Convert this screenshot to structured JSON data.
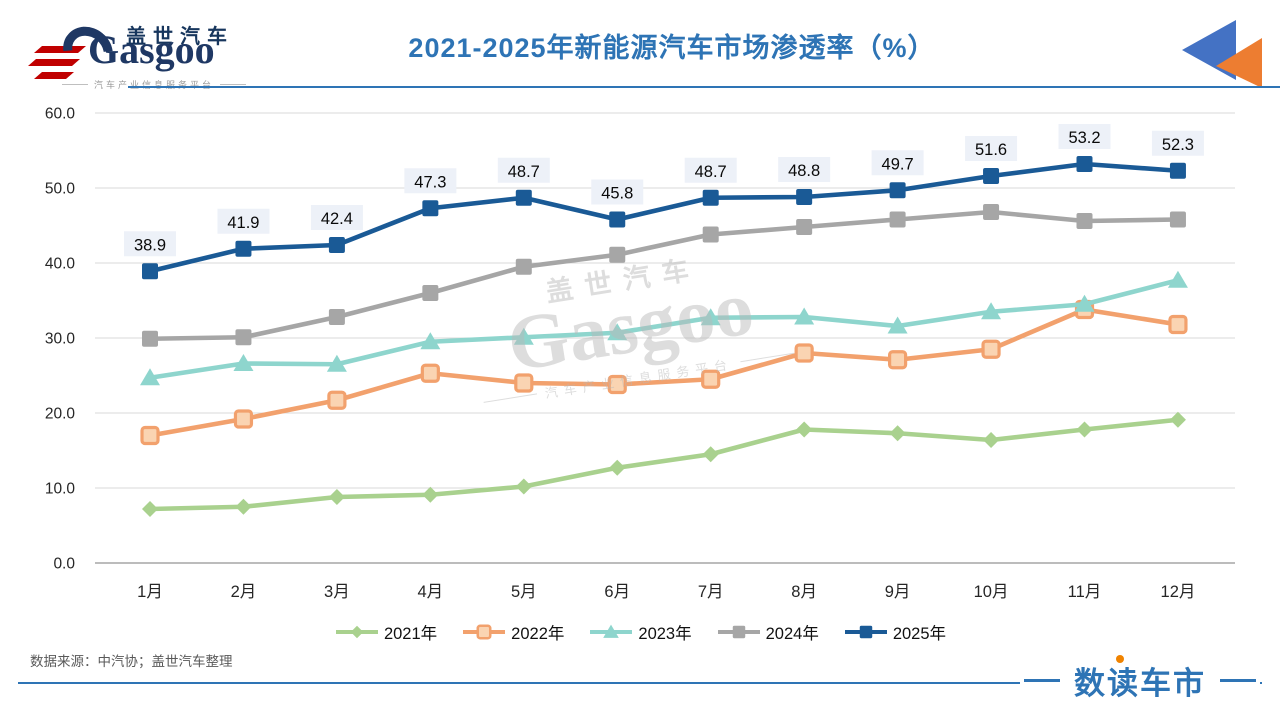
{
  "header": {
    "logo": {
      "brand_cn": "盖世汽车",
      "brand_en": "Gasgoo",
      "tagline": "汽车产业信息服务平台"
    },
    "title": "2021-2025年新能源汽车市场渗透率（%）"
  },
  "chart_data": {
    "type": "line",
    "title": "2021-2025年新能源汽车市场渗透率（%）",
    "categories": [
      "1月",
      "2月",
      "3月",
      "4月",
      "5月",
      "6月",
      "7月",
      "8月",
      "9月",
      "10月",
      "11月",
      "12月"
    ],
    "xlabel": "",
    "ylabel": "",
    "ylim": [
      0,
      60
    ],
    "yticks": [
      0,
      10,
      20,
      30,
      40,
      50,
      60
    ],
    "grid": true,
    "legend_position": "bottom",
    "series": [
      {
        "name": "2021年",
        "color": "#a9d18e",
        "marker": "diamond",
        "values": [
          7.2,
          7.5,
          8.8,
          9.1,
          10.2,
          12.7,
          14.5,
          17.8,
          17.3,
          16.4,
          17.8,
          19.1
        ]
      },
      {
        "name": "2022年",
        "color": "#f2a16d",
        "marker": "square-open",
        "marker_fill": "#fad4b2",
        "values": [
          17.0,
          19.2,
          21.7,
          25.3,
          24.0,
          23.8,
          24.5,
          28.0,
          27.1,
          28.5,
          33.8,
          31.8
        ]
      },
      {
        "name": "2023年",
        "color": "#8ed5cd",
        "marker": "triangle",
        "values": [
          24.7,
          26.6,
          26.5,
          29.5,
          30.1,
          30.7,
          32.7,
          32.8,
          31.6,
          33.5,
          34.5,
          37.7
        ]
      },
      {
        "name": "2024年",
        "color": "#a6a6a6",
        "marker": "square",
        "values": [
          29.9,
          30.1,
          32.8,
          36.0,
          39.5,
          41.1,
          43.8,
          44.8,
          45.8,
          46.8,
          45.6,
          45.8
        ]
      },
      {
        "name": "2025年",
        "color": "#1a5a96",
        "marker": "square",
        "data_labels": true,
        "values": [
          38.9,
          41.9,
          42.4,
          47.3,
          48.7,
          45.8,
          48.7,
          48.8,
          49.7,
          51.6,
          53.2,
          52.3
        ]
      }
    ],
    "data_label_bg": "#edf1f8"
  },
  "watermark": {
    "brand_cn": "盖世汽车",
    "brand_en": "Gasgoo",
    "tagline": "汽车产业信息服务平台"
  },
  "footer": {
    "source": "数据来源：中汽协；盖世汽车整理",
    "brand": "数读车市"
  },
  "colors": {
    "title": "#2e74b5",
    "header_line": "#2e74b5",
    "triangle_blue": "#4472c4",
    "triangle_orange": "#ed7d31",
    "gridline": "#d9d9d9",
    "axis_line": "#a6a6a6",
    "brand_dot_orange": "#f08300"
  }
}
